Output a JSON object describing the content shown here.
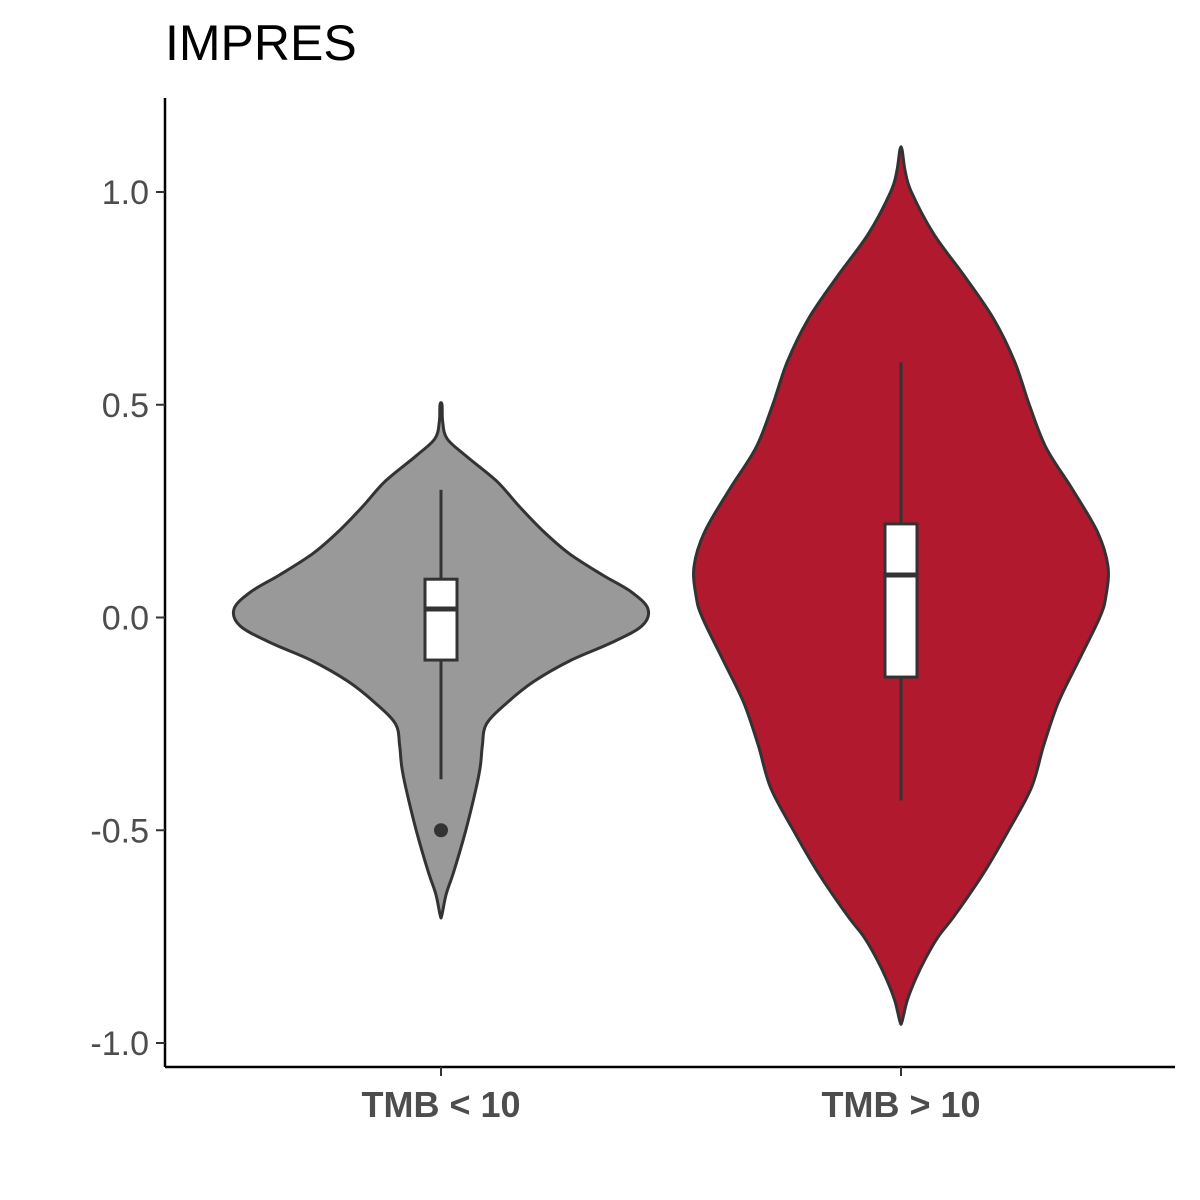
{
  "chart_data": {
    "type": "violin",
    "title": "IMPRES",
    "xlabel": "",
    "ylabel": "",
    "ylim": [
      -1.06,
      1.22
    ],
    "yticks": [
      1.0,
      0.5,
      0.0,
      -0.5,
      -1.0
    ],
    "ytick_labels": [
      "1.0",
      "0.5",
      "0.0",
      "-0.5",
      "-1.0"
    ],
    "categories": [
      "TMB < 10",
      "TMB > 10"
    ],
    "grid": false,
    "legend": "none",
    "groups": [
      {
        "category": "TMB < 10",
        "color": "#999999",
        "box": {
          "min": -0.38,
          "q1": -0.1,
          "median": 0.02,
          "q3": 0.09,
          "max": 0.3
        },
        "outliers": [
          -0.5
        ],
        "violin": {
          "y": [
            0.5,
            0.46,
            0.42,
            0.38,
            0.32,
            0.26,
            0.2,
            0.15,
            0.1,
            0.06,
            0.02,
            -0.02,
            -0.06,
            -0.1,
            -0.15,
            -0.2,
            -0.25,
            -0.3,
            -0.35,
            -0.4,
            -0.5,
            -0.6,
            -0.65,
            -0.7
          ],
          "half_width": [
            0.005,
            0.008,
            0.03,
            0.12,
            0.27,
            0.38,
            0.5,
            0.62,
            0.78,
            0.92,
            1.0,
            0.97,
            0.82,
            0.63,
            0.45,
            0.32,
            0.22,
            0.2,
            0.19,
            0.17,
            0.12,
            0.06,
            0.025,
            0.004
          ]
        }
      },
      {
        "category": "TMB > 10",
        "color": "#b0192e",
        "box": {
          "min": -0.43,
          "q1": -0.14,
          "median": 0.1,
          "q3": 0.22,
          "max": 0.6
        },
        "outliers": [],
        "violin": {
          "y": [
            1.1,
            1.05,
            1.0,
            0.9,
            0.8,
            0.7,
            0.6,
            0.5,
            0.4,
            0.3,
            0.2,
            0.12,
            0.05,
            0.0,
            -0.1,
            -0.2,
            -0.3,
            -0.4,
            -0.5,
            -0.6,
            -0.7,
            -0.75,
            -0.8,
            -0.85,
            -0.9,
            -0.95
          ],
          "half_width": [
            0.005,
            0.02,
            0.05,
            0.16,
            0.31,
            0.45,
            0.55,
            0.62,
            0.7,
            0.83,
            0.95,
            1.0,
            0.99,
            0.96,
            0.86,
            0.76,
            0.69,
            0.63,
            0.52,
            0.4,
            0.26,
            0.18,
            0.12,
            0.07,
            0.03,
            0.005
          ]
        }
      }
    ]
  }
}
